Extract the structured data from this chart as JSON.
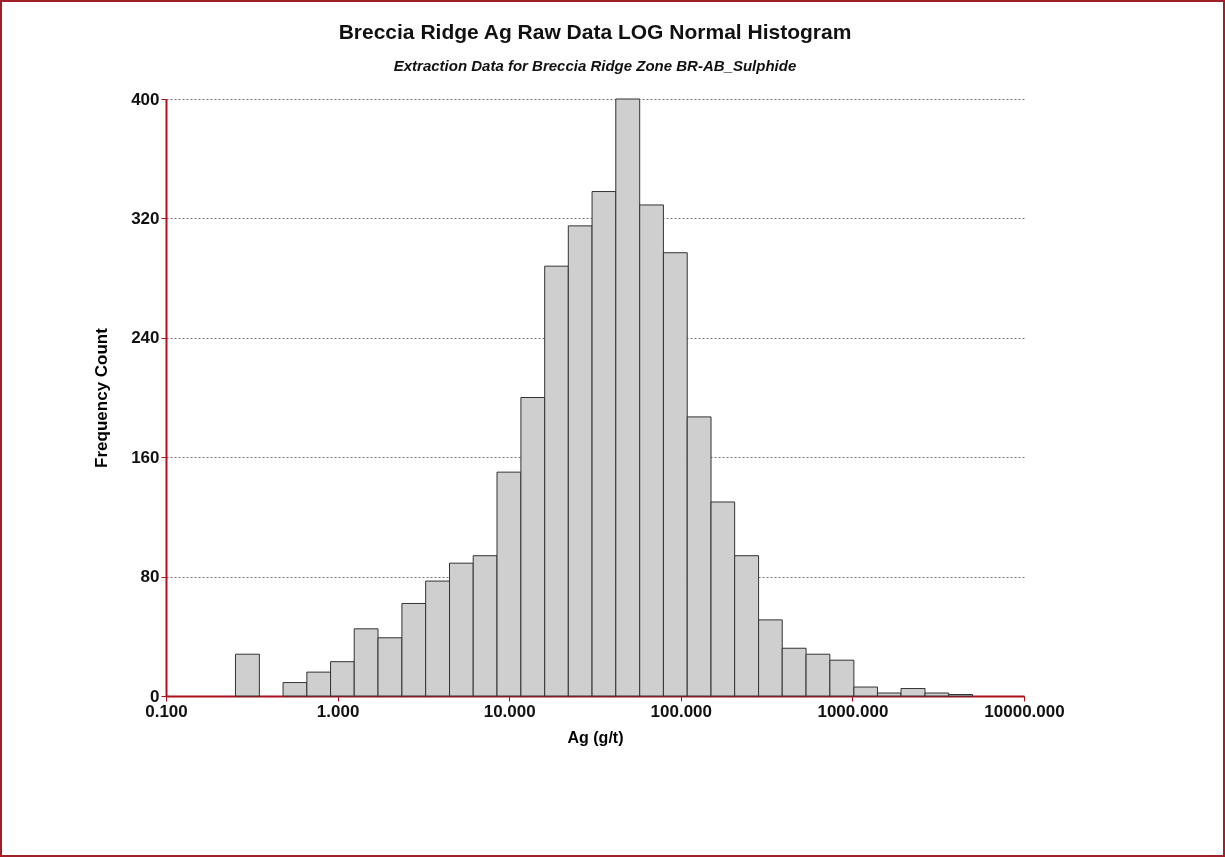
{
  "chart_data": {
    "type": "histogram",
    "title": "Breccia Ridge Ag Raw Data LOG Normal Histogram",
    "subtitle": "Extraction Data for Breccia Ridge Zone BR-AB_Sulphide",
    "xlabel": "Ag (g/t)",
    "ylabel": "Frequency Count",
    "bins": [
      0.254,
      0.35,
      0.481,
      0.662,
      0.91,
      1.25,
      1.72,
      2.37,
      3.26,
      4.49,
      6.17,
      8.49,
      11.7,
      16.1,
      22.1,
      30.4,
      41.8,
      57.6,
      79.2,
      109,
      150,
      206,
      284,
      390,
      537,
      739,
      1020,
      1400,
      1920,
      2650,
      3640,
      5010
    ],
    "values": [
      28,
      0,
      9,
      16,
      23,
      45,
      39,
      62,
      77,
      89,
      94,
      150,
      200,
      288,
      315,
      338,
      400,
      329,
      297,
      187,
      130,
      94,
      51,
      32,
      28,
      24,
      6,
      2,
      5,
      2,
      1
    ],
    "color": "#cfcfcf",
    "log": "x",
    "grid": "y",
    "xlim": [
      0.1,
      10000
    ],
    "xticks": [
      {
        "value": 0.1,
        "label": "0.100"
      },
      {
        "value": 1,
        "label": "1.000"
      },
      {
        "value": 10,
        "label": "10.000"
      },
      {
        "value": 100,
        "label": "100.000"
      },
      {
        "value": 1000,
        "label": "1000.000"
      },
      {
        "value": 10000,
        "label": "10000.000"
      }
    ],
    "ylim": [
      0,
      400
    ],
    "yticks": [
      0,
      80,
      160,
      240,
      320,
      400
    ]
  }
}
